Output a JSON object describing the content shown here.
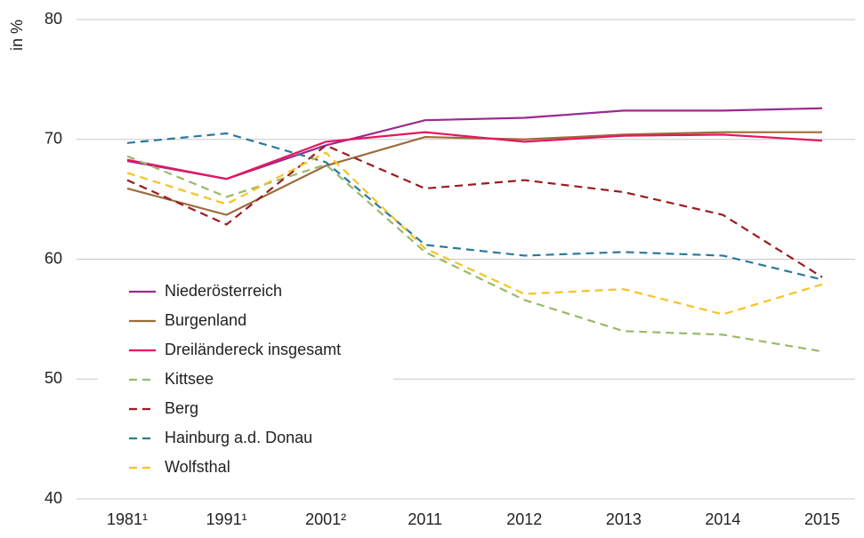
{
  "chart_data": {
    "type": "line",
    "y_label": "in %",
    "categories": [
      "1981¹",
      "1991¹",
      "2001²",
      "2011",
      "2012",
      "2013",
      "2014",
      "2015"
    ],
    "ylim": [
      40,
      80
    ],
    "yticks": [
      40,
      50,
      60,
      70,
      80
    ],
    "grid": true,
    "legend": "lower left",
    "series": [
      {
        "name": "Niederösterreich",
        "color": "#9b2a8e",
        "dash": "solid",
        "values": [
          68.2,
          66.7,
          69.5,
          71.6,
          71.8,
          72.4,
          72.4,
          72.6
        ]
      },
      {
        "name": "Burgenland",
        "color": "#9c6b3a",
        "dash": "solid",
        "values": [
          65.9,
          63.7,
          67.8,
          70.2,
          70.0,
          70.4,
          70.6,
          70.6
        ]
      },
      {
        "name": "Dreiländereck insgesamt",
        "color": "#e5175f",
        "dash": "solid",
        "values": [
          68.3,
          66.7,
          69.8,
          70.6,
          69.8,
          70.3,
          70.4,
          69.9
        ]
      },
      {
        "name": "Kittsee",
        "color": "#9ab96a",
        "dash": "dashed",
        "values": [
          68.6,
          65.2,
          67.9,
          60.6,
          56.6,
          54.0,
          53.7,
          52.3
        ]
      },
      {
        "name": "Berg",
        "color": "#9b1c1f",
        "dash": "dashed",
        "values": [
          66.6,
          62.9,
          69.5,
          65.9,
          66.6,
          65.6,
          63.7,
          58.5
        ]
      },
      {
        "name": "Hainburg a.d. Donau",
        "color": "#2a7a9b",
        "dash": "dashed",
        "values": [
          69.7,
          70.5,
          68.1,
          61.2,
          60.3,
          60.6,
          60.3,
          58.3
        ]
      },
      {
        "name": "Wolfsthal",
        "color": "#f6c325",
        "dash": "dashed",
        "values": [
          67.2,
          64.6,
          68.9,
          60.9,
          57.1,
          57.5,
          55.4,
          57.9
        ]
      }
    ]
  }
}
